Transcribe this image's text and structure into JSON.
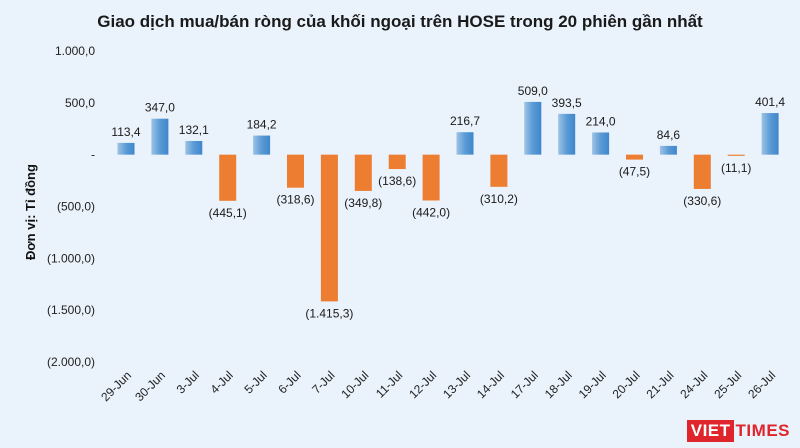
{
  "chart_data": {
    "type": "bar",
    "title": "Giao dịch mua/bán ròng của khối ngoại trên HOSE trong 20 phiên gần nhất",
    "ylabel": "Đơn vị: Tỉ đồng",
    "xlabel": "",
    "ylim": [
      -2000,
      1000
    ],
    "yticks": [
      1000,
      500,
      0,
      -500,
      -1000,
      -1500,
      -2000
    ],
    "ytick_labels": [
      "1.000,0",
      "500,0",
      "-",
      "(500,0)",
      "(1.000,0)",
      "(1.500,0)",
      "(2.000,0)"
    ],
    "categories": [
      "29-Jun",
      "30-Jun",
      "3-Jul",
      "4-Jul",
      "5-Jul",
      "6-Jul",
      "7-Jul",
      "10-Jul",
      "11-Jul",
      "12-Jul",
      "13-Jul",
      "14-Jul",
      "17-Jul",
      "18-Jul",
      "19-Jul",
      "20-Jul",
      "21-Jul",
      "24-Jul",
      "25-Jul",
      "26-Jul"
    ],
    "values": [
      113.4,
      347.0,
      132.1,
      -445.1,
      184.2,
      -318.6,
      -1415.3,
      -349.8,
      -138.6,
      -442.0,
      216.7,
      -310.2,
      509.0,
      393.5,
      214.0,
      -47.5,
      84.6,
      -330.6,
      -11.1,
      401.4
    ],
    "data_labels": [
      "113,4",
      "347,0",
      "132,1",
      "(445,1)",
      "184,2",
      "(318,6)",
      "(1.415,3)",
      "(349,8)",
      "(138,6)",
      "(442,0)",
      "216,7",
      "(310,2)",
      "509,0",
      "393,5",
      "214,0",
      "(47,5)",
      "84,6",
      "(330,6)",
      "(11,1)",
      "401,4"
    ],
    "colors": {
      "positive": "#5b9bd5",
      "positive_light": "#9dc3e6",
      "negative": "#ed7d31",
      "background": "#eaf2fb"
    },
    "grid": false,
    "legend": "none"
  },
  "logo": {
    "part_a": "VIET",
    "part_b": "TIMES"
  }
}
